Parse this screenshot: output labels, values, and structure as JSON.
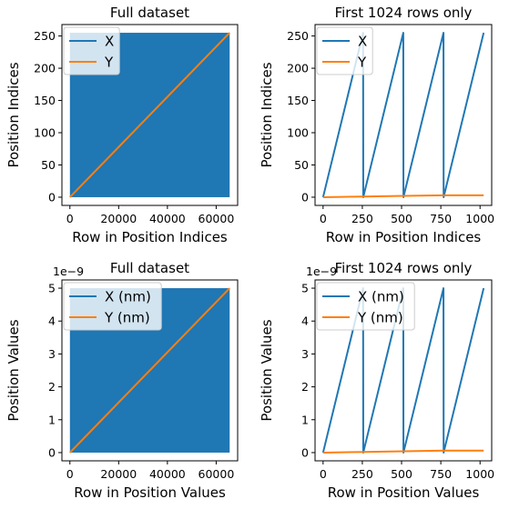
{
  "colors": {
    "x_series": "#1f77b4",
    "y_series": "#ff7f0e",
    "legend_bg": "#ffffff"
  },
  "chart_data": [
    {
      "type": "line",
      "title": "Full dataset",
      "xlabel": "Row in Position Indices",
      "ylabel": "Position Indices",
      "xlim": [
        0,
        65536
      ],
      "ylim": [
        0,
        255
      ],
      "xticks": [
        0,
        20000,
        40000,
        60000
      ],
      "yticks": [
        0,
        50,
        100,
        150,
        200,
        250
      ],
      "xtick_labels": [
        "0",
        "20000",
        "40000",
        "60000"
      ],
      "ytick_labels": [
        "0",
        "50",
        "100",
        "150",
        "200",
        "250"
      ],
      "offset_text": "",
      "legend_placement": "top-left",
      "series": [
        {
          "name": "X",
          "pattern": "sawtooth",
          "x_range": [
            0,
            65535
          ],
          "period": 256,
          "y_range": [
            0,
            255
          ],
          "dense_fill": true
        },
        {
          "name": "Y",
          "pattern": "linear",
          "points": [
            [
              0,
              0
            ],
            [
              65535,
              255
            ]
          ]
        }
      ]
    },
    {
      "type": "line",
      "title": "First 1024 rows only",
      "xlabel": "Row in Position Indices",
      "ylabel": "Position Indices",
      "xlim": [
        0,
        1023
      ],
      "ylim": [
        0,
        255
      ],
      "xticks": [
        0,
        250,
        500,
        750,
        1000
      ],
      "yticks": [
        0,
        50,
        100,
        150,
        200,
        250
      ],
      "xtick_labels": [
        "0",
        "250",
        "500",
        "750",
        "1000"
      ],
      "ytick_labels": [
        "0",
        "50",
        "100",
        "150",
        "200",
        "250"
      ],
      "offset_text": "",
      "legend_placement": "top-left",
      "series": [
        {
          "name": "X",
          "pattern": "sawtooth",
          "points": [
            [
              0,
              0
            ],
            [
              255,
              255
            ],
            [
              256,
              0
            ],
            [
              511,
              255
            ],
            [
              512,
              0
            ],
            [
              767,
              255
            ],
            [
              768,
              0
            ],
            [
              1023,
              255
            ]
          ]
        },
        {
          "name": "Y",
          "pattern": "step",
          "points": [
            [
              0,
              0
            ],
            [
              256,
              1
            ],
            [
              512,
              2
            ],
            [
              768,
              3
            ],
            [
              1023,
              3
            ]
          ]
        }
      ]
    },
    {
      "type": "line",
      "title": "Full dataset",
      "xlabel": "Row in Position Values",
      "ylabel": "Position Values",
      "xlim": [
        0,
        65536
      ],
      "ylim": [
        0,
        5e-09
      ],
      "xticks": [
        0,
        20000,
        40000,
        60000
      ],
      "yticks": [
        0,
        1e-09,
        2e-09,
        3e-09,
        4e-09,
        5e-09
      ],
      "xtick_labels": [
        "0",
        "20000",
        "40000",
        "60000"
      ],
      "ytick_labels": [
        "0",
        "1",
        "2",
        "3",
        "4",
        "5"
      ],
      "offset_text": "1e−9",
      "legend_placement": "top-left",
      "series": [
        {
          "name": "X (nm)",
          "pattern": "sawtooth",
          "x_range": [
            0,
            65535
          ],
          "period": 256,
          "y_range": [
            0,
            5e-09
          ],
          "dense_fill": true
        },
        {
          "name": "Y (nm)",
          "pattern": "linear",
          "points": [
            [
              0,
              0
            ],
            [
              65535,
              5e-09
            ]
          ]
        }
      ]
    },
    {
      "type": "line",
      "title": "First 1024 rows only",
      "xlabel": "Row in Position Values",
      "ylabel": "Position Values",
      "xlim": [
        0,
        1023
      ],
      "ylim": [
        0,
        5e-09
      ],
      "xticks": [
        0,
        250,
        500,
        750,
        1000
      ],
      "yticks": [
        0,
        1e-09,
        2e-09,
        3e-09,
        4e-09,
        5e-09
      ],
      "xtick_labels": [
        "0",
        "250",
        "500",
        "750",
        "1000"
      ],
      "ytick_labels": [
        "0",
        "1",
        "2",
        "3",
        "4",
        "5"
      ],
      "offset_text": "1e−9",
      "legend_placement": "top-left",
      "series": [
        {
          "name": "X (nm)",
          "pattern": "sawtooth",
          "points": [
            [
              0,
              0
            ],
            [
              255,
              5e-09
            ],
            [
              256,
              0
            ],
            [
              511,
              5e-09
            ],
            [
              512,
              0
            ],
            [
              767,
              5e-09
            ],
            [
              768,
              0
            ],
            [
              1023,
              5e-09
            ]
          ]
        },
        {
          "name": "Y (nm)",
          "pattern": "step",
          "points": [
            [
              0,
              0
            ],
            [
              256,
              2e-11
            ],
            [
              512,
              4e-11
            ],
            [
              768,
              6e-11
            ],
            [
              1023,
              6e-11
            ]
          ]
        }
      ]
    }
  ]
}
